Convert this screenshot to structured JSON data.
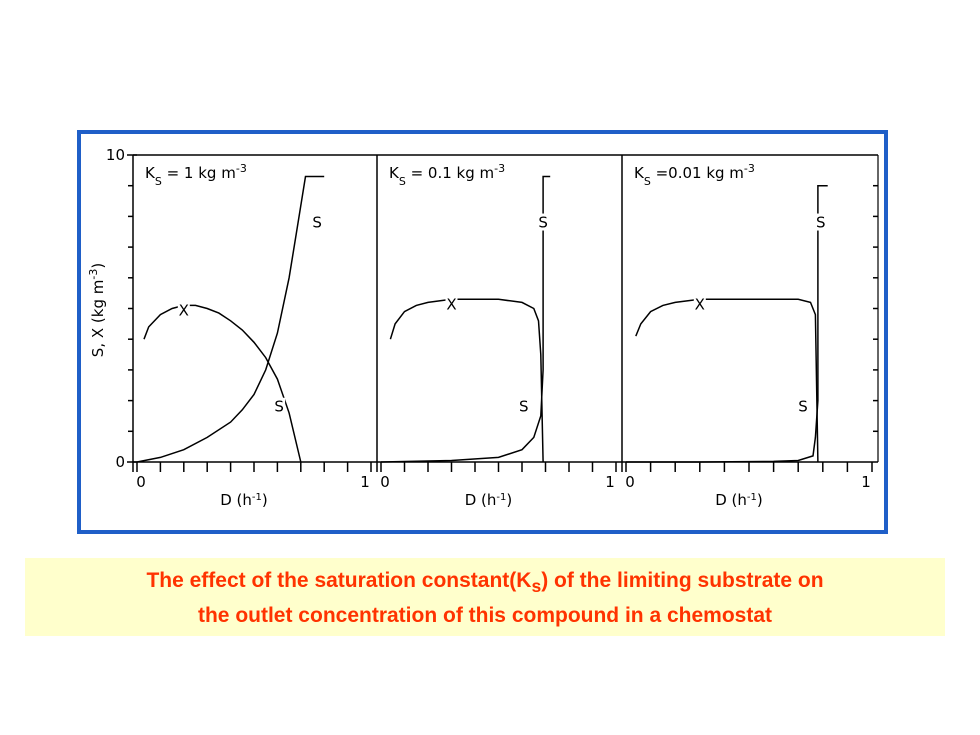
{
  "y_label": {
    "text": "S, X (kg m",
    "superscript": "-3",
    "close": ")"
  },
  "chart_data": [
    {
      "type": "line",
      "title": {
        "symbol": "K",
        "subscript": "S",
        "text": " = 1 kg m",
        "superscript": "-3"
      },
      "x_label": {
        "text": "D (h",
        "superscript": "-1",
        "close": ")"
      },
      "xlim": [
        0,
        1
      ],
      "ylim": [
        0,
        10
      ],
      "xticks": [
        0,
        1
      ],
      "yticks": [
        0,
        10
      ],
      "x_minor_ticks": [
        0.1,
        0.2,
        0.3,
        0.4,
        0.5,
        0.6,
        0.7,
        0.8,
        0.9
      ],
      "y_minor_ticks": [
        1,
        2,
        3,
        4,
        5,
        6,
        7,
        8,
        9
      ],
      "series": [
        {
          "name": "X",
          "color": "#000000",
          "x": [
            0.03,
            0.05,
            0.1,
            0.15,
            0.2,
            0.25,
            0.3,
            0.35,
            0.4,
            0.45,
            0.5,
            0.55,
            0.6,
            0.65,
            0.7
          ],
          "values": [
            4.0,
            4.4,
            4.8,
            5.0,
            5.1,
            5.1,
            5.0,
            4.85,
            4.6,
            4.3,
            3.9,
            3.4,
            2.7,
            1.6,
            0.0
          ]
        },
        {
          "name": "S",
          "color": "#000000",
          "x": [
            0,
            0.1,
            0.2,
            0.3,
            0.4,
            0.45,
            0.5,
            0.55,
            0.6,
            0.65,
            0.68,
            0.72,
            0.73,
            0.8
          ],
          "values": [
            0,
            0.15,
            0.4,
            0.8,
            1.3,
            1.7,
            2.2,
            3.0,
            4.2,
            6.0,
            7.4,
            9.3,
            9.3,
            9.3
          ]
        }
      ]
    },
    {
      "type": "line",
      "title": {
        "symbol": "K",
        "subscript": "S",
        "text": " = 0.1 kg m",
        "superscript": "-3"
      },
      "x_label": {
        "text": "D (h",
        "superscript": "-1",
        "close": ")"
      },
      "xlim": [
        0,
        1
      ],
      "ylim": [
        0,
        10
      ],
      "xticks": [
        0,
        1
      ],
      "x_minor_ticks": [
        0.1,
        0.2,
        0.3,
        0.4,
        0.5,
        0.6,
        0.7,
        0.8,
        0.9
      ],
      "series": [
        {
          "name": "X",
          "color": "#000000",
          "x": [
            0.04,
            0.06,
            0.1,
            0.15,
            0.2,
            0.3,
            0.4,
            0.5,
            0.6,
            0.65,
            0.67,
            0.68,
            0.69
          ],
          "values": [
            4.0,
            4.5,
            4.9,
            5.1,
            5.2,
            5.3,
            5.3,
            5.3,
            5.2,
            5.0,
            4.6,
            3.5,
            0
          ]
        },
        {
          "name": "S",
          "color": "#000000",
          "x": [
            0,
            0.3,
            0.5,
            0.6,
            0.65,
            0.68,
            0.69,
            0.69,
            0.72
          ],
          "values": [
            0,
            0.05,
            0.15,
            0.4,
            0.8,
            1.5,
            3,
            9.3,
            9.3
          ]
        }
      ]
    },
    {
      "type": "line",
      "title": {
        "symbol": "K",
        "subscript": "S",
        "text": " =0.01 kg m",
        "superscript": "-3"
      },
      "x_label": {
        "text": "D (h",
        "superscript": "-1",
        "close": ")"
      },
      "xlim": [
        0,
        1
      ],
      "ylim": [
        0,
        10
      ],
      "xticks": [
        0,
        1
      ],
      "x_minor_ticks": [
        0.1,
        0.2,
        0.3,
        0.4,
        0.5,
        0.6,
        0.7,
        0.8,
        0.9
      ],
      "y_minor_ticks": [
        1,
        2,
        3,
        4,
        5,
        6,
        7,
        8,
        9
      ],
      "series": [
        {
          "name": "X",
          "color": "#000000",
          "x": [
            0.04,
            0.06,
            0.1,
            0.15,
            0.2,
            0.3,
            0.5,
            0.7,
            0.75,
            0.77,
            0.78
          ],
          "values": [
            4.1,
            4.5,
            4.9,
            5.1,
            5.2,
            5.3,
            5.3,
            5.3,
            5.2,
            4.8,
            0
          ]
        },
        {
          "name": "S",
          "color": "#000000",
          "x": [
            0,
            0.3,
            0.6,
            0.7,
            0.76,
            0.77,
            0.78,
            0.78,
            0.82
          ],
          "values": [
            0,
            0,
            0.02,
            0.05,
            0.2,
            0.8,
            2,
            9.0,
            9.0
          ]
        }
      ]
    }
  ],
  "caption": {
    "line1_start": "The effect of the saturation constant(K",
    "line1_subscript": "s",
    "line1_end": ") of the limiting substrate on",
    "line2": "the outlet concentration of this compound in a chemostat"
  }
}
